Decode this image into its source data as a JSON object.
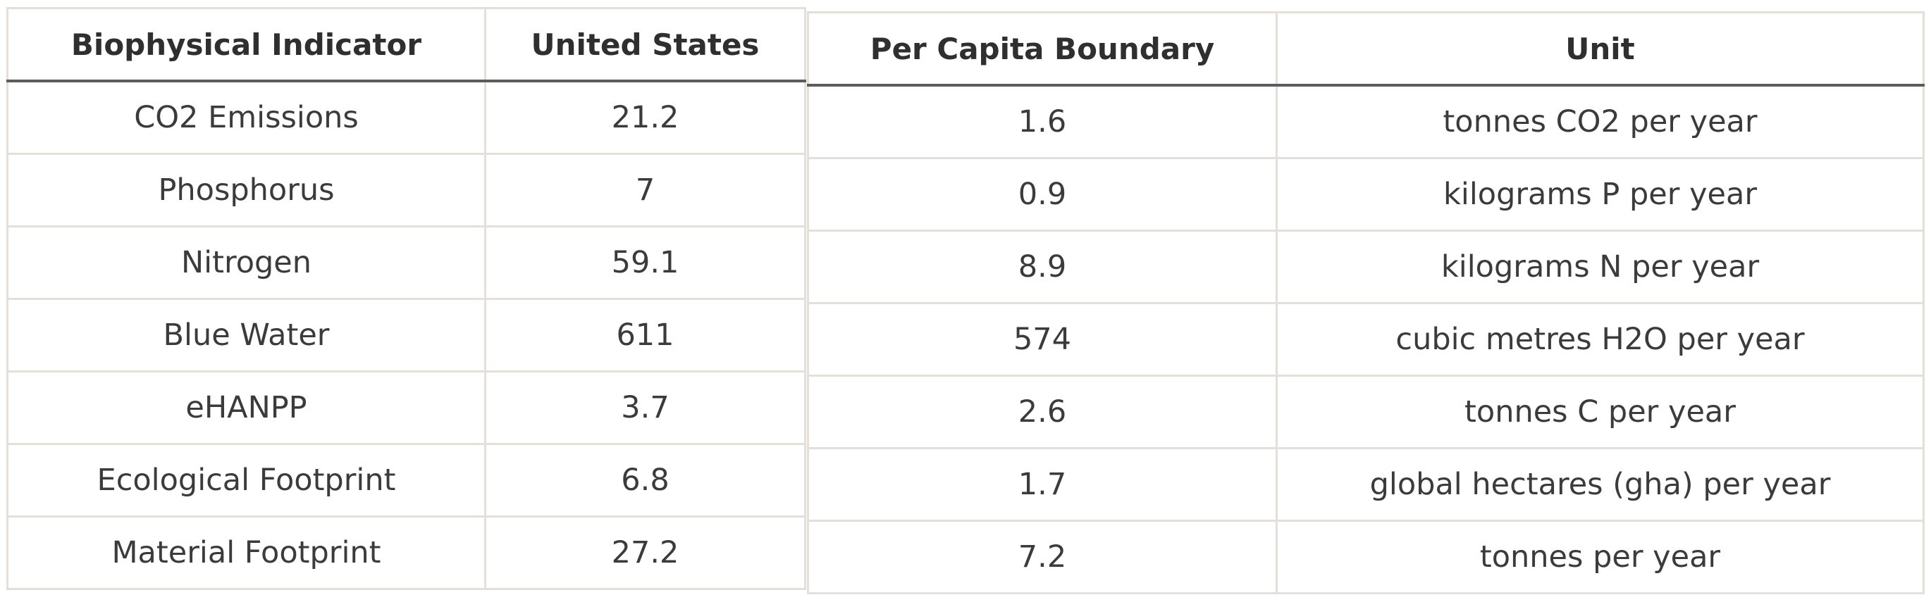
{
  "left_table": {
    "headers": [
      "Biophysical Indicator",
      "United States"
    ],
    "rows": [
      [
        "CO2 Emissions",
        "21.2"
      ],
      [
        "Phosphorus",
        "7"
      ],
      [
        "Nitrogen",
        "59.1"
      ],
      [
        "Blue Water",
        "611"
      ],
      [
        "eHANPP",
        "3.7"
      ],
      [
        "Ecological Footprint",
        "6.8"
      ],
      [
        "Material Footprint",
        "27.2"
      ]
    ]
  },
  "right_table": {
    "headers": [
      "Per Capita Boundary",
      "Unit"
    ],
    "rows": [
      [
        "1.6",
        "tonnes CO2 per year"
      ],
      [
        "0.9",
        "kilograms P per year"
      ],
      [
        "8.9",
        "kilograms N per year"
      ],
      [
        "574",
        "cubic metres H2O per year"
      ],
      [
        "2.6",
        "tonnes C per year"
      ],
      [
        "1.7",
        "global hectares (gha) per year"
      ],
      [
        "7.2",
        "tonnes per year"
      ]
    ]
  }
}
